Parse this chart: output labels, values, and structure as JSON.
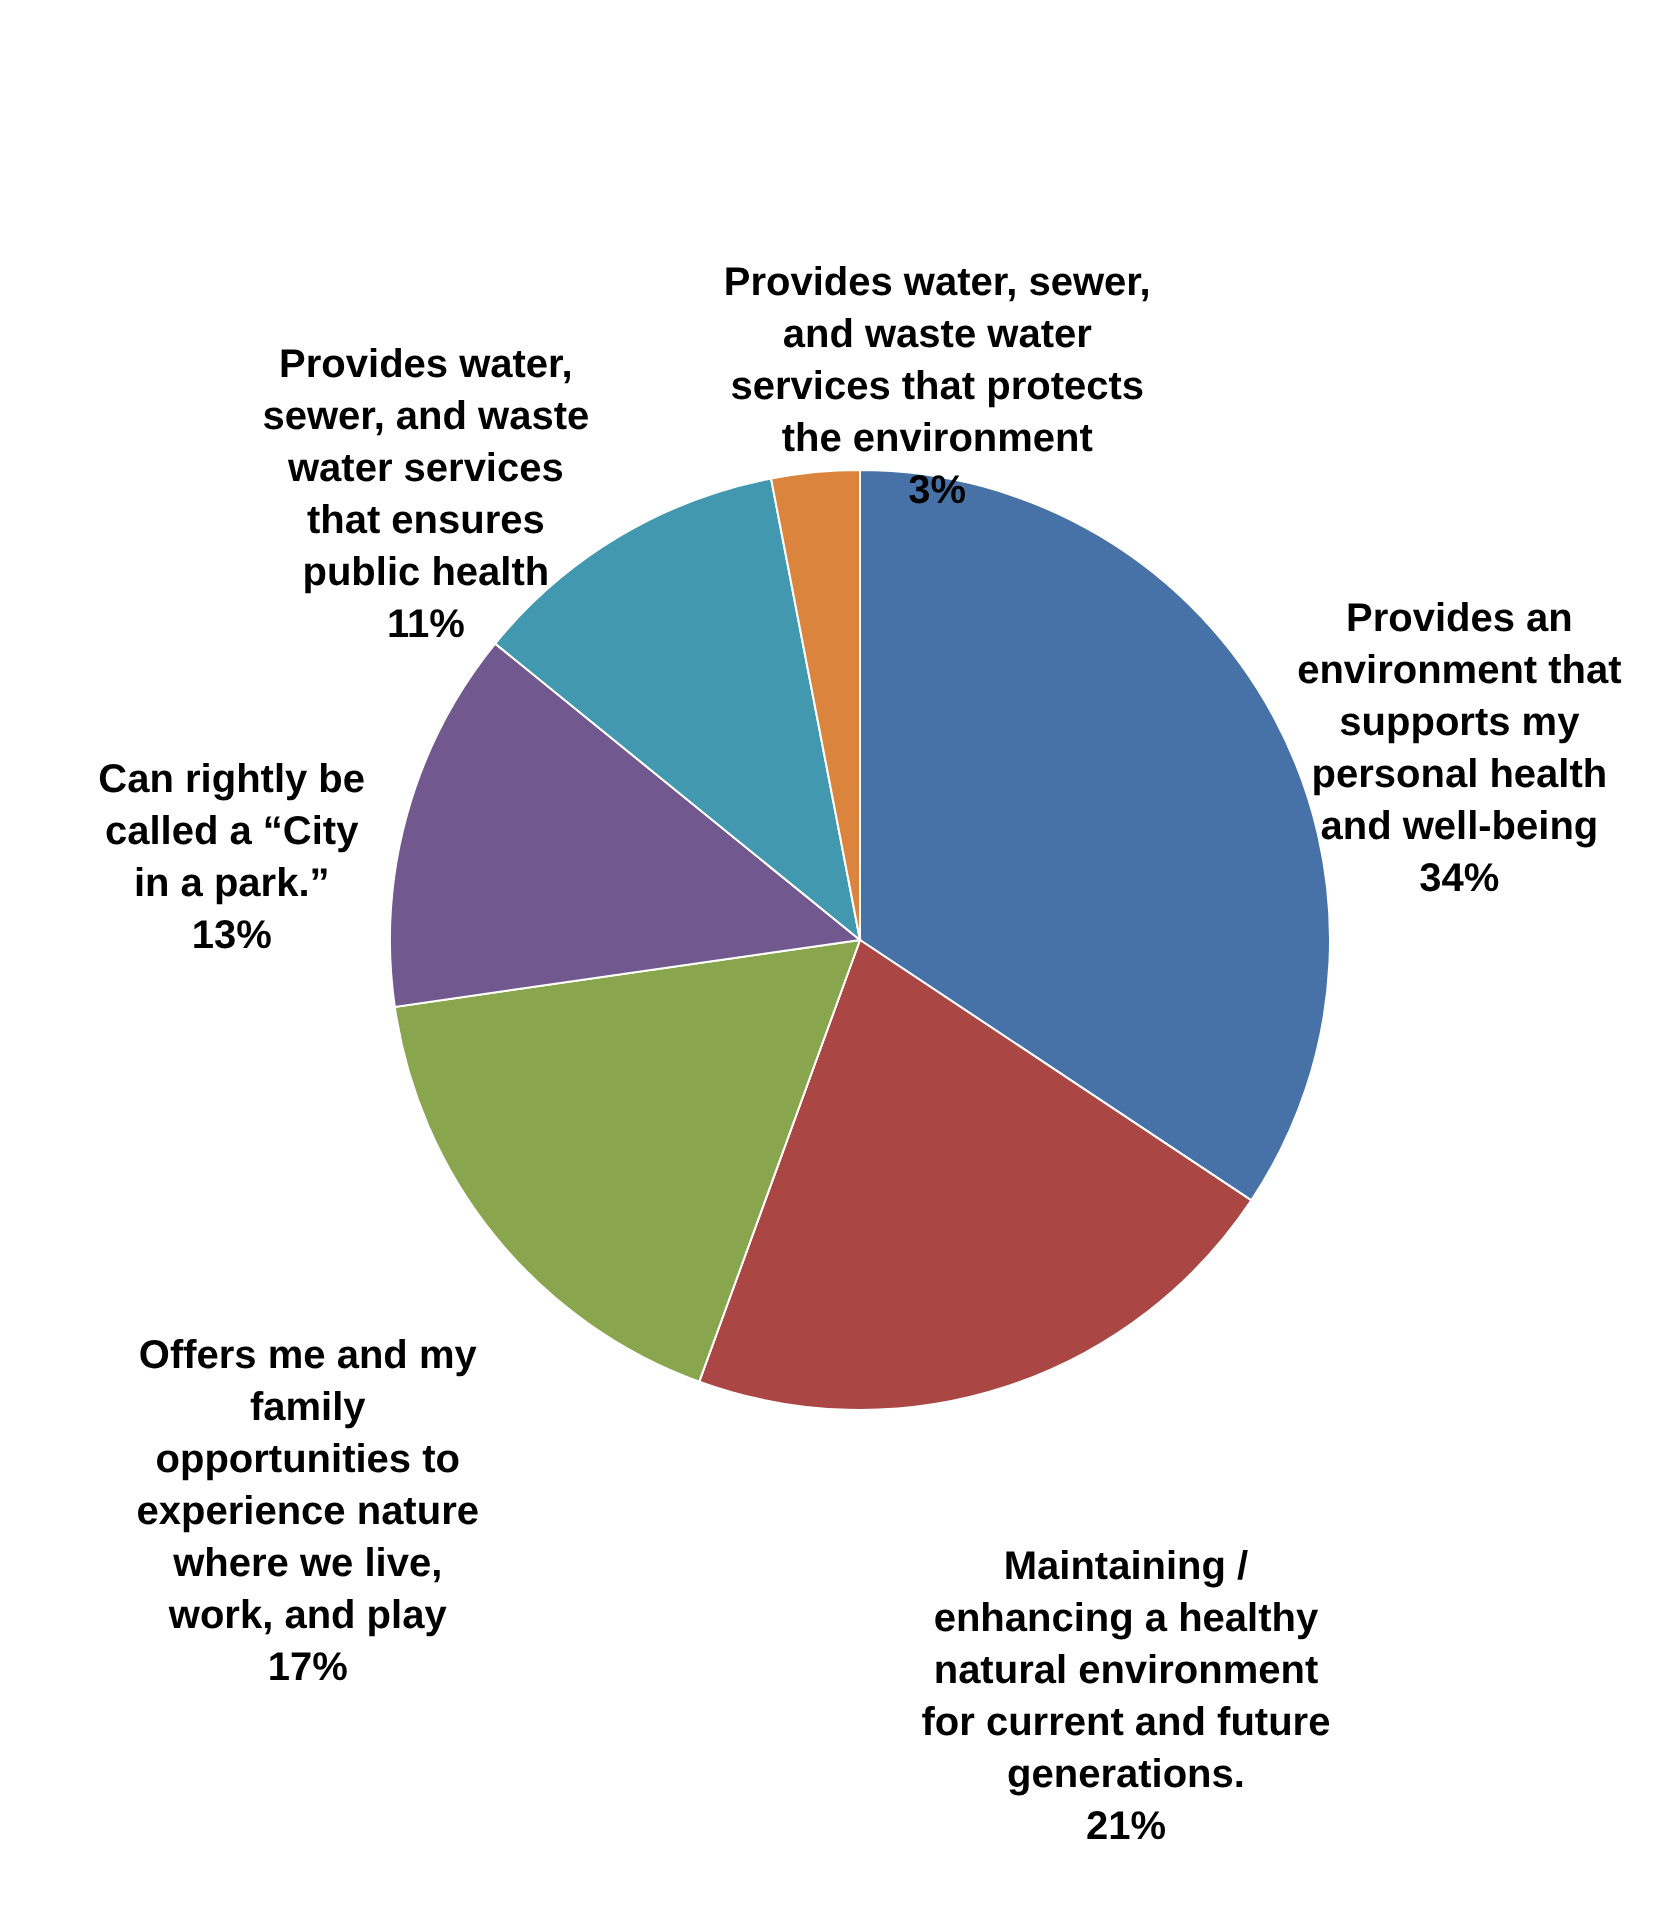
{
  "chart_data": {
    "type": "pie",
    "categories": [
      "Provides an environment that supports my personal health and well-being",
      "Maintaining / enhancing a healthy natural environment for current and future generations.",
      "Offers me and my family opportunities to experience nature where we live, work, and play",
      "Can rightly be called a “City in a park.”",
      "Provides water, sewer, and waste water services that ensures public health",
      "Provides water, sewer, and waste water services that protects the environment"
    ],
    "values": [
      34,
      21,
      17,
      13,
      11,
      3
    ],
    "value_labels": [
      "34%",
      "21%",
      "17%",
      "13%",
      "11%",
      "3%"
    ],
    "colors": [
      "#4672a8",
      "#aa4643",
      "#89a54e",
      "#71588f",
      "#4198af",
      "#db843d"
    ],
    "legend": false
  }
}
